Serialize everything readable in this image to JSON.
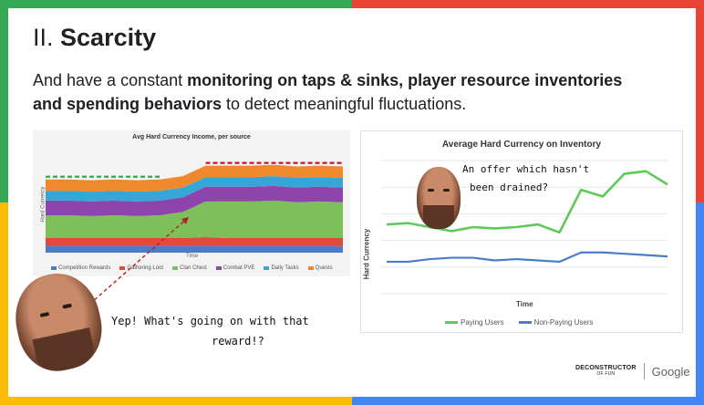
{
  "slide": {
    "title_roman": "II.",
    "title_word": "Scarcity",
    "subtitle_pre": "And have a constant ",
    "subtitle_bold1": "monitoring on taps & sinks, player resource inventories",
    "subtitle_bold2": "and spending behaviors",
    "subtitle_post": " to detect meaningful fluctuations."
  },
  "left_chart": {
    "title": "Avg Hard Currency Income, per source",
    "ylabel": "Hard Currency",
    "xlabel": "Time",
    "legend": [
      {
        "label": "Competition Rewards",
        "color": "#4a7cc7"
      },
      {
        "label": "Gathering Loot",
        "color": "#e04a3c"
      },
      {
        "label": "Clan Chest",
        "color": "#7dc05a"
      },
      {
        "label": "Combat PVE",
        "color": "#8e44ad"
      },
      {
        "label": "Daily Tasks",
        "color": "#35a6d6"
      },
      {
        "label": "Quests",
        "color": "#f0892e"
      }
    ]
  },
  "right_chart": {
    "title": "Average Hard Currency on Inventory",
    "ylabel": "Hard Currency",
    "xlabel": "Time",
    "legend": [
      {
        "label": "Paying Users",
        "color": "#5fc95a"
      },
      {
        "label": "Non-Paying Users",
        "color": "#4a7cc7"
      }
    ]
  },
  "chart_data": [
    {
      "type": "area",
      "title": "Avg Hard Currency Income, per source",
      "xlabel": "Time",
      "ylabel": "Hard Currency",
      "x": [
        1,
        2,
        3,
        4,
        5,
        6,
        7,
        8,
        9,
        10,
        11,
        12,
        13,
        14
      ],
      "series": [
        {
          "name": "Competition Rewards",
          "values": [
            8,
            8,
            8,
            8,
            8,
            8,
            8,
            8,
            8,
            8,
            8,
            8,
            8,
            8
          ]
        },
        {
          "name": "Gathering Loot",
          "values": [
            10,
            10,
            10,
            10,
            10,
            10,
            10,
            11,
            10,
            10,
            10,
            10,
            10,
            10
          ]
        },
        {
          "name": "Clan Chest",
          "values": [
            28,
            28,
            27,
            28,
            27,
            28,
            32,
            44,
            45,
            45,
            46,
            44,
            45,
            44
          ]
        },
        {
          "name": "Combat PVE",
          "values": [
            18,
            18,
            18,
            18,
            18,
            18,
            18,
            18,
            18,
            18,
            18,
            18,
            18,
            18
          ]
        },
        {
          "name": "Daily Tasks",
          "values": [
            12,
            12,
            12,
            12,
            12,
            12,
            12,
            12,
            12,
            12,
            12,
            12,
            12,
            12
          ]
        },
        {
          "name": "Quests",
          "values": [
            14,
            14,
            14,
            14,
            14,
            14,
            14,
            14,
            14,
            14,
            14,
            14,
            14,
            14
          ]
        }
      ]
    },
    {
      "type": "line",
      "title": "Average Hard Currency on Inventory",
      "xlabel": "Time",
      "ylabel": "Hard Currency",
      "x": [
        1,
        2,
        3,
        4,
        5,
        6,
        7,
        8,
        9,
        10,
        11,
        12,
        13,
        14
      ],
      "series": [
        {
          "name": "Paying Users",
          "values": [
            52,
            53,
            50,
            47,
            50,
            49,
            50,
            52,
            46,
            78,
            73,
            90,
            92,
            82
          ]
        },
        {
          "name": "Non-Paying Users",
          "values": [
            24,
            24,
            26,
            27,
            27,
            25,
            26,
            25,
            24,
            31,
            31,
            30,
            29,
            28
          ]
        }
      ]
    }
  ],
  "annotations": {
    "offer_line1": "An offer which hasn't",
    "offer_line2": "been drained?",
    "reward_line1": "Yep! What's going on with that",
    "reward_line2": "reward!?"
  },
  "footer": {
    "brand_line1": "DECONSTRUCTOR",
    "brand_line2": "OF FUN",
    "partner": "Google"
  }
}
